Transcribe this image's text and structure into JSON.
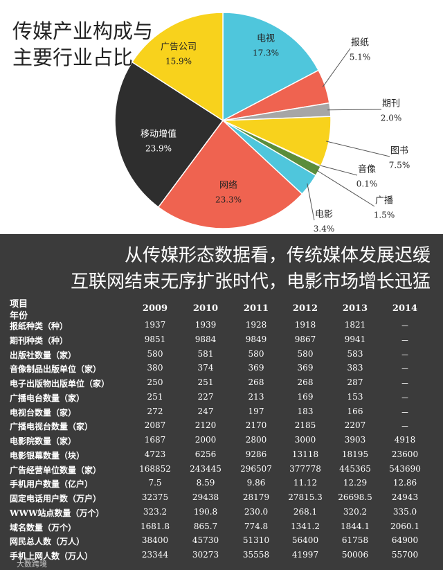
{
  "chart_data": {
    "type": "pie",
    "title": "传媒产业构成与主要行业占比",
    "categories": [
      "电视",
      "报纸",
      "期刊",
      "图书",
      "音像",
      "广播",
      "电影",
      "网络",
      "移动增值",
      "广告公司"
    ],
    "values": [
      17.3,
      5.1,
      2.0,
      7.5,
      0.1,
      1.5,
      3.4,
      23.3,
      23.9,
      15.9
    ],
    "value_labels": [
      "17.3%",
      "5.1%",
      "2.0%",
      "7.5%",
      "0.1%",
      "1.5%",
      "3.4%",
      "23.3%",
      "23.9%",
      "15.9%"
    ],
    "colors": [
      "#4fc6dc",
      "#ef6350",
      "#a6a6a6",
      "#f8d21c",
      "#f8d21c",
      "#5b8d3b",
      "#4fc6dc",
      "#ef6350",
      "#2e2e2e",
      "#f8d21c"
    ]
  },
  "headline": [
    "从传媒形态数据看，传统媒体发展迟缓",
    "互联网结束无序扩张时代，电影市场增长迅猛"
  ],
  "table": {
    "corner": [
      "项目",
      "年份"
    ],
    "years": [
      "2009",
      "2010",
      "2011",
      "2012",
      "2013",
      "2014"
    ],
    "rows": [
      {
        "label": "报纸种类（种）",
        "values": [
          "1937",
          "1939",
          "1928",
          "1918",
          "1821",
          "－"
        ]
      },
      {
        "label": "期刊种类（种）",
        "values": [
          "9851",
          "9884",
          "9849",
          "9867",
          "9941",
          "－"
        ]
      },
      {
        "label": "出版社数量（家）",
        "values": [
          "580",
          "581",
          "580",
          "580",
          "583",
          "－"
        ]
      },
      {
        "label": "音像制品出版单位（家）",
        "values": [
          "380",
          "374",
          "369",
          "369",
          "383",
          "－"
        ]
      },
      {
        "label": "电子出版物出版单位（家）",
        "values": [
          "250",
          "251",
          "268",
          "268",
          "287",
          "－"
        ]
      },
      {
        "label": "广播电台数量（家）",
        "values": [
          "251",
          "227",
          "213",
          "169",
          "153",
          "－"
        ]
      },
      {
        "label": "电视台数量（家）",
        "values": [
          "272",
          "247",
          "197",
          "183",
          "166",
          "－"
        ]
      },
      {
        "label": "广播电视台数量（家）",
        "values": [
          "2087",
          "2120",
          "2170",
          "2185",
          "2207",
          "－"
        ]
      },
      {
        "label": "电影院数量（家）",
        "values": [
          "1687",
          "2000",
          "2800",
          "3000",
          "3903",
          "4918"
        ]
      },
      {
        "label": "电影银幕数量（块）",
        "values": [
          "4723",
          "6256",
          "9286",
          "13118",
          "18195",
          "23600"
        ]
      },
      {
        "label": "广告经营单位数量（家）",
        "values": [
          "168852",
          "243445",
          "296507",
          "377778",
          "445365",
          "543690"
        ]
      },
      {
        "label": "手机用户数量（亿户）",
        "values": [
          "7.5",
          "8.59",
          "9.86",
          "11.12",
          "12.29",
          "12.86"
        ]
      },
      {
        "label": "固定电话用户数（万户）",
        "values": [
          "32375",
          "29438",
          "28179",
          "27815.3",
          "26698.5",
          "24943"
        ]
      },
      {
        "label": "WWW站点数量（万个）",
        "values": [
          "323.2",
          "190.8",
          "230.0",
          "268.1",
          "320.2",
          "335.0"
        ]
      },
      {
        "label": "域名数量（万个）",
        "values": [
          "1681.8",
          "865.7",
          "774.8",
          "1341.2",
          "1844.1",
          "2060.1"
        ]
      },
      {
        "label": "网民总人数（万人）",
        "values": [
          "38400",
          "45730",
          "51310",
          "56400",
          "61758",
          "64900"
        ]
      },
      {
        "label": "手机上网人数（万人）",
        "values": [
          "23344",
          "30273",
          "35558",
          "41997",
          "50006",
          "55700"
        ]
      }
    ]
  },
  "watermark": "大数跨境"
}
